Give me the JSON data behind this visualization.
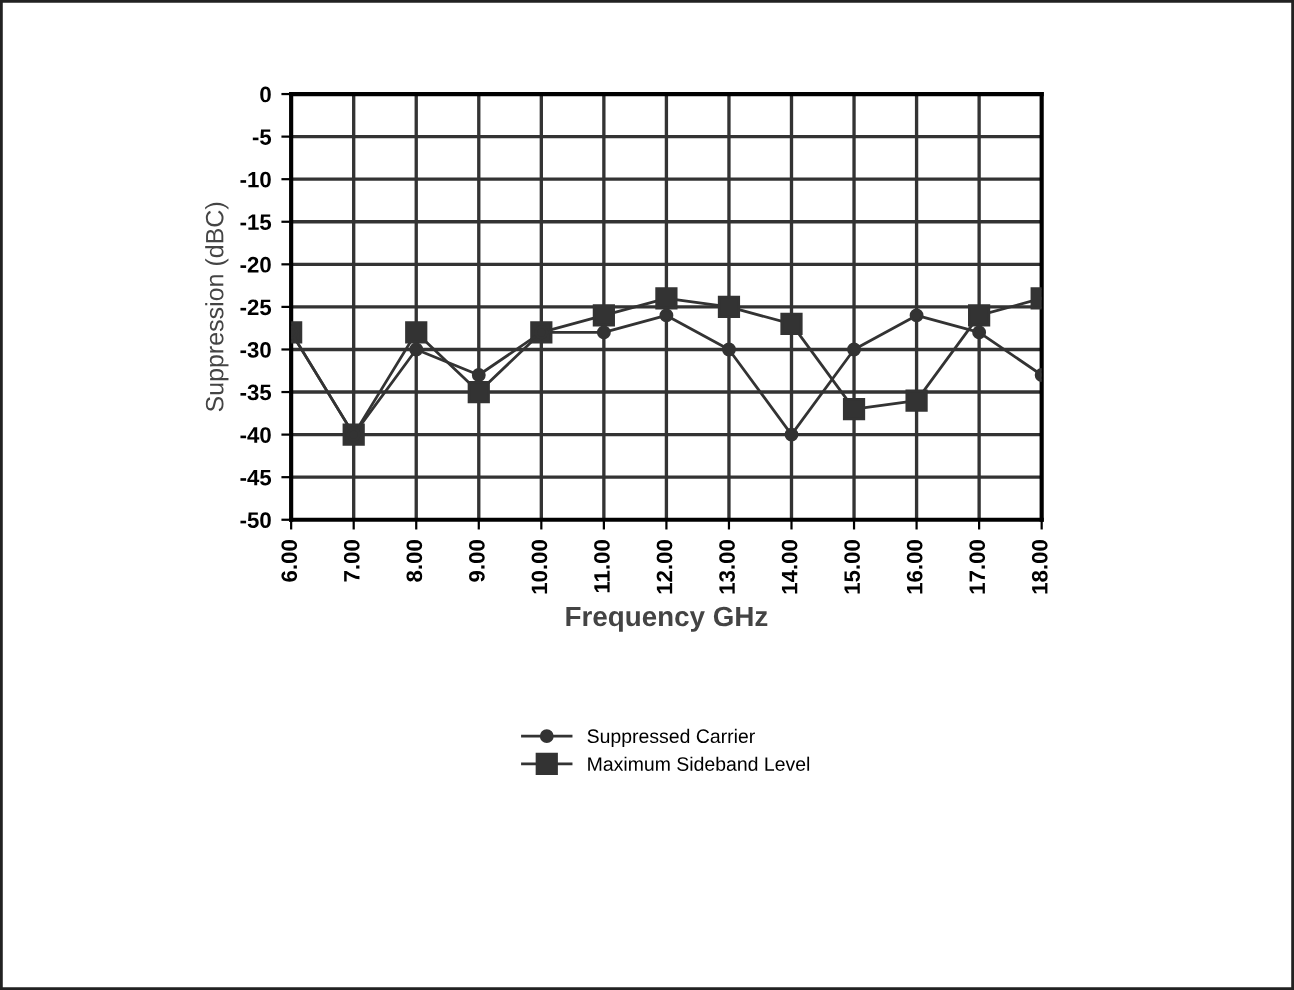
{
  "chart_data": {
    "type": "line",
    "xlabel": "Frequency GHz",
    "ylabel": "Suppression (dBC)",
    "categories": [
      "6.00",
      "7.00",
      "8.00",
      "9.00",
      "10.00",
      "11.00",
      "12.00",
      "13.00",
      "14.00",
      "15.00",
      "16.00",
      "17.00",
      "18.00"
    ],
    "series": [
      {
        "name": "Suppressed Carrier",
        "color": "#333333",
        "marker": "circle",
        "values": [
          -28,
          -40,
          -30,
          -33,
          -28,
          -28,
          -26,
          -30,
          -40,
          -30,
          -26,
          -28,
          -33
        ]
      },
      {
        "name": "Maximum Sideband Level",
        "color": "#333333",
        "marker": "square",
        "values": [
          -28,
          -40,
          -28,
          -35,
          -28,
          -26,
          -24,
          -25,
          -27,
          -37,
          -36,
          -26,
          -24
        ]
      }
    ],
    "ylim": [
      -50,
      0
    ],
    "yticks": [
      0,
      -5,
      -10,
      -15,
      -20,
      -25,
      -30,
      -35,
      -40,
      -45,
      -50
    ],
    "grid": true,
    "legend": "bottom",
    "line_style": "solid"
  }
}
